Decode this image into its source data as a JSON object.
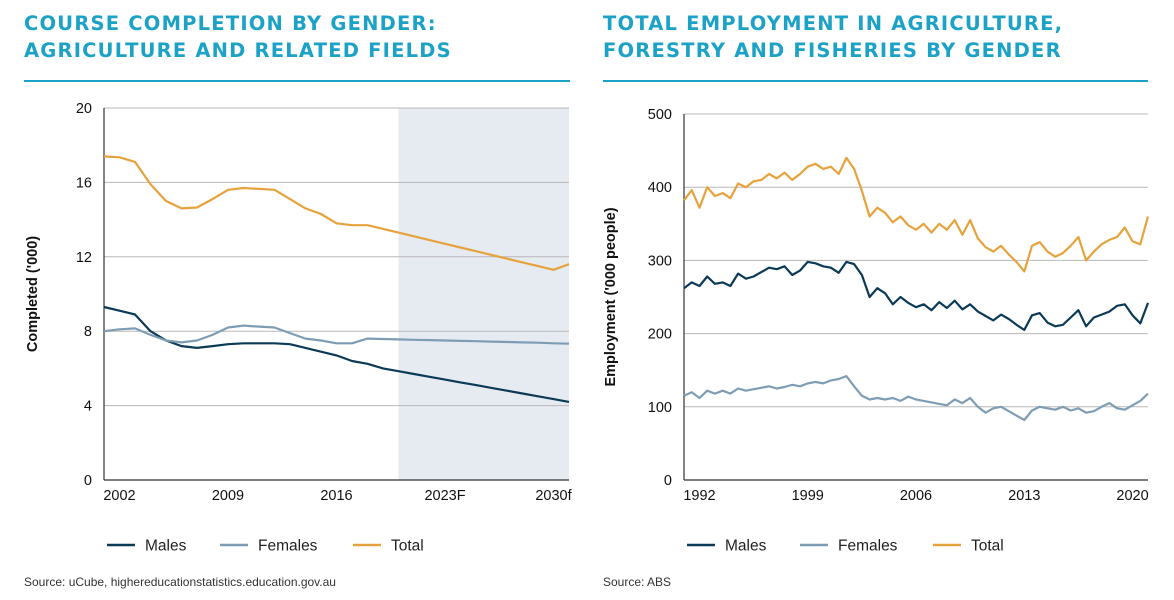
{
  "left": {
    "title_line1": "COURSE COMPLETION BY GENDER:",
    "title_line2": "AGRICULTURE AND RELATED FIELDS",
    "source": "Source: uCube, highereducationstatistics.education.gov.au"
  },
  "right": {
    "title_line1": "TOTAL EMPLOYMENT IN AGRICULTURE,",
    "title_line2": "FORESTRY AND FISHERIES BY GENDER",
    "source": "Source: ABS"
  },
  "colors": {
    "males": "#0b3a57",
    "females": "#7e9db4",
    "total": "#e6a23c",
    "forecast": "#e6ebf2",
    "title": "#1ba2c6"
  },
  "chart_data": [
    {
      "type": "line",
      "title": "COURSE COMPLETION BY GENDER: AGRICULTURE AND RELATED FIELDS",
      "xlabel": "",
      "ylabel": "Completed ('000)",
      "x": [
        2001,
        2002,
        2003,
        2004,
        2005,
        2006,
        2007,
        2008,
        2009,
        2010,
        2011,
        2012,
        2013,
        2014,
        2015,
        2016,
        2017,
        2018,
        2019,
        2020,
        2021,
        2022,
        2023,
        2024,
        2025,
        2026,
        2027,
        2028,
        2029,
        2030,
        2031
      ],
      "xlim": [
        2001,
        2031
      ],
      "ylim": [
        0,
        20
      ],
      "x_tick_labels": [
        {
          "x": 2002,
          "label": "2002"
        },
        {
          "x": 2009,
          "label": "2009"
        },
        {
          "x": 2016,
          "label": "2016"
        },
        {
          "x": 2023,
          "label": "2023F"
        },
        {
          "x": 2030,
          "label": "2030f"
        }
      ],
      "y_ticks": [
        0,
        4,
        8,
        12,
        16,
        20
      ],
      "forecast_region": [
        2020,
        2031
      ],
      "grid": true,
      "legend_position": "bottom",
      "series": [
        {
          "name": "Males",
          "color": "#0b3a57",
          "values": [
            9.3,
            9.1,
            8.9,
            8.0,
            7.5,
            7.2,
            7.1,
            7.2,
            7.3,
            7.35,
            7.35,
            7.35,
            7.3,
            7.1,
            6.9,
            6.7,
            6.4,
            6.25,
            6.0,
            5.85,
            5.7,
            5.55,
            5.4,
            5.25,
            5.1,
            4.95,
            4.8,
            4.65,
            4.5,
            4.35,
            4.2
          ]
        },
        {
          "name": "Females",
          "color": "#7e9db4",
          "values": [
            8.0,
            8.1,
            8.15,
            7.8,
            7.5,
            7.4,
            7.5,
            7.8,
            8.2,
            8.3,
            8.25,
            8.2,
            7.9,
            7.6,
            7.5,
            7.35,
            7.35,
            7.6,
            7.58,
            7.56,
            7.54,
            7.52,
            7.5,
            7.48,
            7.46,
            7.44,
            7.42,
            7.4,
            7.38,
            7.35,
            7.33
          ]
        },
        {
          "name": "Total",
          "color": "#e6a23c",
          "values": [
            17.4,
            17.35,
            17.1,
            15.9,
            15.0,
            14.6,
            14.65,
            15.1,
            15.6,
            15.7,
            15.65,
            15.6,
            15.1,
            14.6,
            14.3,
            13.8,
            13.7,
            13.7,
            13.5,
            13.3,
            13.1,
            12.9,
            12.7,
            12.5,
            12.3,
            12.1,
            11.9,
            11.7,
            11.5,
            11.3,
            11.6
          ]
        }
      ]
    },
    {
      "type": "line",
      "title": "TOTAL EMPLOYMENT IN AGRICULTURE, FORESTRY AND FISHERIES BY GENDER",
      "xlabel": "",
      "ylabel": "Employment ('000 people)",
      "x": [
        1991.0,
        1991.5,
        1992.0,
        1992.5,
        1993.0,
        1993.5,
        1994.0,
        1994.5,
        1995.0,
        1995.5,
        1996.0,
        1996.5,
        1997.0,
        1997.5,
        1998.0,
        1998.5,
        1999.0,
        1999.5,
        2000.0,
        2000.5,
        2001.0,
        2001.5,
        2002.0,
        2002.5,
        2003.0,
        2003.5,
        2004.0,
        2004.5,
        2005.0,
        2005.5,
        2006.0,
        2006.5,
        2007.0,
        2007.5,
        2008.0,
        2008.5,
        2009.0,
        2009.5,
        2010.0,
        2010.5,
        2011.0,
        2011.5,
        2012.0,
        2012.5,
        2013.0,
        2013.5,
        2014.0,
        2014.5,
        2015.0,
        2015.5,
        2016.0,
        2016.5,
        2017.0,
        2017.5,
        2018.0,
        2018.5,
        2019.0,
        2019.5,
        2020.0,
        2020.5,
        2021.0
      ],
      "xlim": [
        1991,
        2021
      ],
      "ylim": [
        0,
        500
      ],
      "x_ticks": [
        1992,
        1999,
        2006,
        2013,
        2020
      ],
      "y_ticks": [
        0,
        100,
        200,
        300,
        400,
        500
      ],
      "grid": true,
      "legend_position": "bottom",
      "series": [
        {
          "name": "Males",
          "color": "#0b3a57",
          "values": [
            262,
            270,
            265,
            278,
            268,
            270,
            265,
            282,
            275,
            278,
            284,
            290,
            288,
            292,
            280,
            286,
            298,
            296,
            292,
            290,
            283,
            298,
            295,
            280,
            250,
            262,
            255,
            240,
            250,
            242,
            236,
            240,
            232,
            243,
            235,
            245,
            233,
            240,
            230,
            224,
            218,
            226,
            220,
            212,
            205,
            225,
            228,
            215,
            210,
            212,
            222,
            232,
            210,
            222,
            226,
            230,
            238,
            240,
            225,
            214,
            242
          ]
        },
        {
          "name": "Females",
          "color": "#7e9db4",
          "values": [
            115,
            120,
            112,
            122,
            118,
            122,
            118,
            125,
            122,
            124,
            126,
            128,
            125,
            127,
            130,
            128,
            132,
            134,
            132,
            136,
            138,
            142,
            128,
            115,
            110,
            112,
            110,
            112,
            108,
            114,
            110,
            108,
            106,
            104,
            102,
            110,
            105,
            112,
            100,
            92,
            98,
            100,
            94,
            88,
            82,
            95,
            100,
            98,
            96,
            100,
            95,
            98,
            92,
            94,
            100,
            105,
            98,
            96,
            102,
            108,
            118
          ]
        },
        {
          "name": "Total",
          "color": "#e6a23c",
          "values": [
            382,
            396,
            372,
            400,
            388,
            392,
            385,
            405,
            400,
            408,
            410,
            418,
            412,
            420,
            410,
            418,
            428,
            432,
            425,
            428,
            418,
            440,
            425,
            395,
            360,
            372,
            365,
            352,
            360,
            348,
            342,
            350,
            338,
            350,
            342,
            355,
            335,
            355,
            330,
            318,
            312,
            320,
            308,
            298,
            285,
            320,
            325,
            312,
            305,
            310,
            320,
            332,
            300,
            312,
            322,
            328,
            332,
            345,
            326,
            322,
            360
          ]
        }
      ]
    }
  ]
}
